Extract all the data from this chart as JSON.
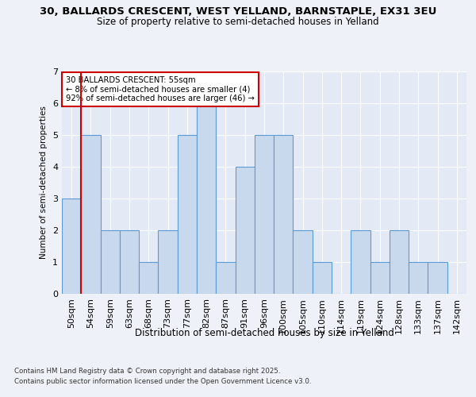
{
  "title1": "30, BALLARDS CRESCENT, WEST YELLAND, BARNSTAPLE, EX31 3EU",
  "title2": "Size of property relative to semi-detached houses in Yelland",
  "xlabel": "Distribution of semi-detached houses by size in Yelland",
  "ylabel": "Number of semi-detached properties",
  "categories": [
    "50sqm",
    "54sqm",
    "59sqm",
    "63sqm",
    "68sqm",
    "73sqm",
    "77sqm",
    "82sqm",
    "87sqm",
    "91sqm",
    "96sqm",
    "100sqm",
    "105sqm",
    "110sqm",
    "114sqm",
    "119sqm",
    "124sqm",
    "128sqm",
    "133sqm",
    "137sqm",
    "142sqm"
  ],
  "values": [
    3,
    5,
    2,
    2,
    1,
    2,
    5,
    6,
    1,
    4,
    5,
    5,
    2,
    1,
    0,
    2,
    1,
    2,
    1,
    1,
    0
  ],
  "bar_color": "#c9d9ed",
  "bar_edge_color": "#5b9bd5",
  "highlight_color": "#cc0000",
  "annotation_title": "30 BALLARDS CRESCENT: 55sqm",
  "annotation_line1": "← 8% of semi-detached houses are smaller (4)",
  "annotation_line2": "92% of semi-detached houses are larger (46) →",
  "footer1": "Contains HM Land Registry data © Crown copyright and database right 2025.",
  "footer2": "Contains public sector information licensed under the Open Government Licence v3.0.",
  "ylim": [
    0,
    7
  ],
  "background_color": "#eef2f8",
  "plot_bg_color": "#e4eaf5"
}
